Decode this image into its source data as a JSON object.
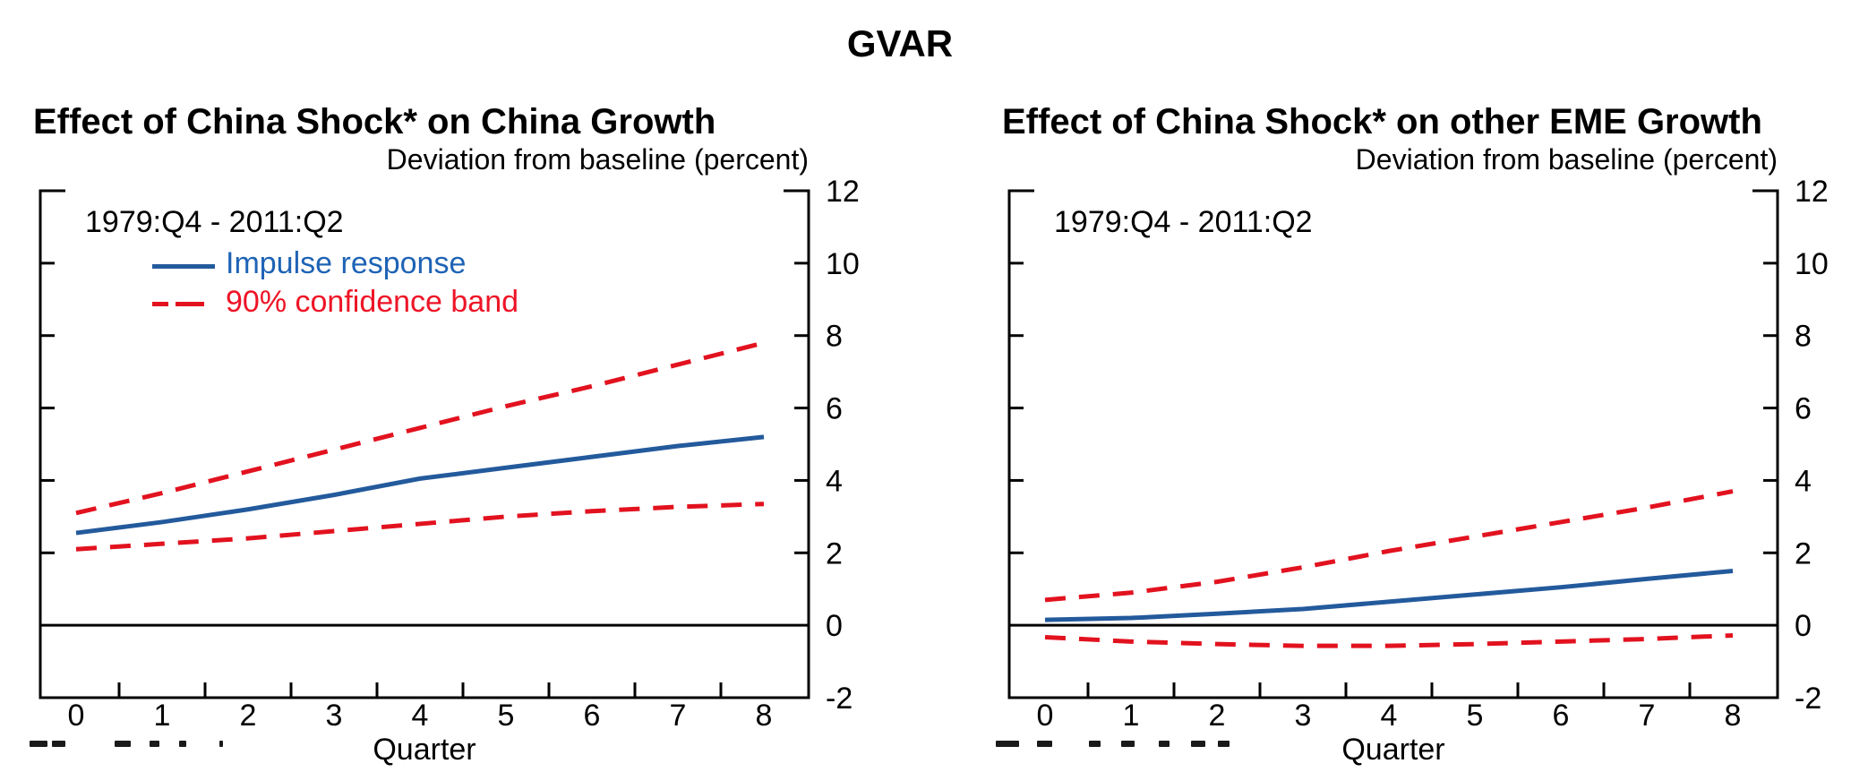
{
  "figure_title": "GVAR",
  "colors": {
    "line_blue": "#235A9C",
    "line_red": "#E2121F",
    "legend_blue_text": "#1E63B5",
    "legend_red_text": "#EE1426",
    "axis": "#000000"
  },
  "chart_data": [
    {
      "type": "line",
      "title": "Effect of China Shock* on China Growth",
      "subtitle": "Deviation from baseline (percent)",
      "sample_label": "1979:Q4 - 2011:Q2",
      "xlabel": "Quarter",
      "x": [
        0,
        1,
        2,
        3,
        4,
        5,
        6,
        7,
        8
      ],
      "xtick_labels": [
        "0",
        "1",
        "2",
        "3",
        "4",
        "5",
        "6",
        "7",
        "8"
      ],
      "ylim": [
        -2,
        12
      ],
      "ytick_labels": [
        "12",
        "10",
        "8",
        "6",
        "4",
        "2",
        "0",
        "-2"
      ],
      "ytick_values": [
        12,
        10,
        8,
        6,
        4,
        2,
        0,
        -2
      ],
      "ytick_marks": [
        10,
        8,
        6,
        4,
        2
      ],
      "grid": false,
      "zero_line": true,
      "legend_position": "top-left",
      "series": [
        {
          "name": "Impulse response",
          "style": "solid",
          "color_key": "line_blue",
          "values": [
            2.55,
            2.85,
            3.2,
            3.6,
            4.05,
            4.35,
            4.65,
            4.95,
            5.2
          ]
        },
        {
          "name": "90% confidence band",
          "bound": "upper",
          "style": "dashed",
          "color_key": "line_red",
          "values": [
            3.1,
            3.65,
            4.25,
            4.85,
            5.45,
            6.05,
            6.6,
            7.2,
            7.8
          ]
        },
        {
          "name": "90% confidence band",
          "bound": "lower",
          "style": "dashed",
          "color_key": "line_red",
          "values": [
            2.1,
            2.25,
            2.4,
            2.6,
            2.8,
            3.0,
            3.15,
            3.27,
            3.35
          ]
        }
      ]
    },
    {
      "type": "line",
      "title": "Effect of China Shock* on other EME Growth",
      "subtitle": "Deviation from baseline (percent)",
      "sample_label": "1979:Q4 - 2011:Q2",
      "xlabel": "Quarter",
      "x": [
        0,
        1,
        2,
        3,
        4,
        5,
        6,
        7,
        8
      ],
      "xtick_labels": [
        "0",
        "1",
        "2",
        "3",
        "4",
        "5",
        "6",
        "7",
        "8"
      ],
      "ylim": [
        -2,
        12
      ],
      "ytick_labels": [
        "12",
        "10",
        "8",
        "6",
        "4",
        "2",
        "0",
        "-2"
      ],
      "ytick_values": [
        12,
        10,
        8,
        6,
        4,
        2,
        0,
        -2
      ],
      "ytick_marks": [
        10,
        8,
        6,
        4,
        2
      ],
      "grid": false,
      "zero_line": true,
      "legend_position": "none",
      "series": [
        {
          "name": "Impulse response",
          "style": "solid",
          "color_key": "line_blue",
          "values": [
            0.15,
            0.2,
            0.32,
            0.45,
            0.65,
            0.85,
            1.05,
            1.28,
            1.5
          ]
        },
        {
          "name": "90% confidence band",
          "bound": "upper",
          "style": "dashed",
          "color_key": "line_red",
          "values": [
            0.7,
            0.9,
            1.2,
            1.6,
            2.05,
            2.45,
            2.85,
            3.25,
            3.7
          ]
        },
        {
          "name": "90% confidence band",
          "bound": "lower",
          "style": "dashed",
          "color_key": "line_red",
          "values": [
            -0.33,
            -0.45,
            -0.52,
            -0.57,
            -0.57,
            -0.52,
            -0.45,
            -0.38,
            -0.28
          ]
        }
      ]
    }
  ]
}
